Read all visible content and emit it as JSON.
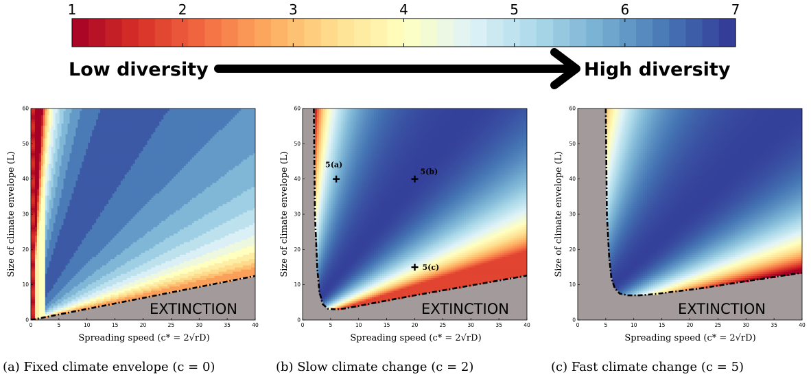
{
  "colorbar": {
    "ticks": [
      "1",
      "2",
      "3",
      "4",
      "5",
      "6",
      "7"
    ],
    "low_label": "Low diversity",
    "high_label": "High diversity",
    "colors": [
      "#a50026",
      "#d73027",
      "#f46d43",
      "#fdae61",
      "#fee090",
      "#ffffbf",
      "#e0f3f8",
      "#abd9e9",
      "#74add1",
      "#4575b4",
      "#313695"
    ]
  },
  "chart_data": [
    {
      "type": "heatmap",
      "panel": "a",
      "caption": "(a) Fixed climate envelope (c = 0)",
      "xlabel": "Spreading speed (c* = 2√rD)",
      "ylabel": "Size of climate envelope (L)",
      "xlim": [
        0,
        40
      ],
      "ylim": [
        0,
        60
      ],
      "xticks": [
        "0",
        "5",
        "10",
        "15",
        "20",
        "25",
        "30",
        "35",
        "40"
      ],
      "yticks": [
        "0",
        "10",
        "20",
        "30",
        "40",
        "50",
        "60"
      ],
      "extinction_label": "EXTINCTION",
      "extinction_boundary": {
        "x": [
          0,
          40
        ],
        "y": [
          0,
          12.5
        ]
      },
      "annotations": []
    },
    {
      "type": "heatmap",
      "panel": "b",
      "caption": "(b) Slow climate change (c = 2)",
      "xlabel": "Spreading speed (c* = 2√rD)",
      "ylabel": "Size of climate envelope (L)",
      "xlim": [
        0,
        40
      ],
      "ylim": [
        0,
        60
      ],
      "xticks": [
        "0",
        "5",
        "10",
        "15",
        "20",
        "25",
        "30",
        "35",
        "40"
      ],
      "yticks": [
        "0",
        "10",
        "20",
        "30",
        "40",
        "50",
        "60"
      ],
      "extinction_label": "EXTINCTION",
      "extinction_boundary": {
        "x": [
          2.0,
          2.2,
          2.6,
          3.0,
          3.6,
          4.5,
          6,
          8,
          12,
          16,
          20,
          25,
          30,
          35,
          40
        ],
        "y": [
          60,
          30,
          15,
          8,
          4.5,
          3.2,
          3.0,
          3.4,
          4.6,
          5.8,
          7.0,
          8.4,
          9.8,
          11.2,
          12.6
        ]
      },
      "annotations": [
        {
          "label": "5(a)",
          "x": 6,
          "y": 40
        },
        {
          "label": "5(b)",
          "x": 20,
          "y": 40
        },
        {
          "label": "5(c)",
          "x": 20,
          "y": 15
        }
      ]
    },
    {
      "type": "heatmap",
      "panel": "c",
      "caption": "(c) Fast climate change (c = 5)",
      "xlabel": "Spreading speed (c* = 2√rD)",
      "ylabel": "Size of climate envelope (L)",
      "xlim": [
        0,
        40
      ],
      "ylim": [
        0,
        60
      ],
      "xticks": [
        "0",
        "5",
        "10",
        "15",
        "20",
        "25",
        "30",
        "35",
        "40"
      ],
      "yticks": [
        "0",
        "10",
        "20",
        "30",
        "40",
        "50",
        "60"
      ],
      "extinction_label": "EXTINCTION",
      "extinction_boundary": {
        "x": [
          5.0,
          5.2,
          5.6,
          6.0,
          6.6,
          7.5,
          9,
          11,
          14,
          18,
          22,
          26,
          30,
          35,
          40
        ],
        "y": [
          60,
          30,
          18,
          12,
          9,
          7.5,
          7.0,
          7.0,
          7.4,
          8.2,
          9.0,
          10.0,
          11.0,
          12.2,
          13.4
        ]
      },
      "annotations": []
    }
  ]
}
